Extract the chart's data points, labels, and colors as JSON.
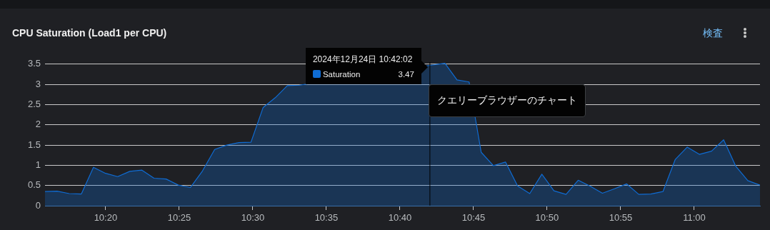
{
  "chart_data": {
    "type": "area",
    "title": "CPU Saturation (Load1 per CPU)",
    "x": [
      10.2646,
      10.2783,
      10.292,
      10.3058,
      10.3195,
      10.3332,
      10.3469,
      10.3607,
      10.3744,
      10.3881,
      10.4018,
      10.4156,
      10.4293,
      10.443,
      10.4568,
      10.4705,
      10.4842,
      10.4979,
      10.5117,
      10.5254,
      10.5391,
      10.5528,
      10.5666,
      10.5803,
      10.594,
      10.6077,
      10.6215,
      10.6352,
      10.6489,
      10.6627,
      10.6764,
      10.6901,
      10.7006,
      10.7176,
      10.7313,
      10.745,
      10.7587,
      10.7725,
      10.7862,
      10.7999,
      10.8137,
      10.8274,
      10.8411,
      10.8548,
      10.8686,
      10.8823,
      10.896,
      10.9097,
      10.9235,
      10.9372,
      10.9509,
      10.9646,
      10.9784,
      10.9921,
      11.0058,
      11.0196,
      11.0333,
      11.047,
      11.0607,
      11.0745
    ],
    "series": [
      {
        "name": "Saturation",
        "color": "#0f6cd4",
        "values": [
          0.35,
          0.36,
          0.3,
          0.29,
          0.95,
          0.8,
          0.72,
          0.85,
          0.88,
          0.68,
          0.66,
          0.51,
          0.45,
          0.86,
          1.39,
          1.5,
          1.56,
          1.57,
          2.43,
          2.67,
          2.97,
          2.98,
          null,
          null,
          null,
          null,
          null,
          null,
          null,
          null,
          null,
          null,
          3.47,
          3.52,
          3.11,
          3.06,
          1.32,
          0.99,
          1.08,
          0.49,
          0.3,
          0.78,
          0.37,
          0.28,
          0.63,
          0.48,
          0.31,
          0.42,
          0.54,
          0.28,
          0.29,
          0.35,
          1.14,
          1.45,
          1.27,
          1.35,
          1.63,
          0.98,
          0.62,
          0.51
        ],
        "value_labels": [
          null,
          null,
          null,
          null,
          null,
          null,
          null,
          null,
          null,
          null,
          null,
          null,
          null,
          null,
          null,
          null,
          null,
          null,
          null,
          null,
          null,
          null,
          null,
          null,
          null,
          null,
          null,
          null,
          null,
          null,
          null,
          null,
          "3.47",
          null,
          null,
          null,
          null,
          null,
          null,
          null,
          null,
          null,
          null,
          null,
          null,
          null,
          null,
          null,
          null,
          null,
          null,
          null,
          null,
          null,
          null,
          null,
          null,
          null,
          null,
          null
        ]
      }
    ],
    "xlim": [
      10.2646,
      11.0745
    ],
    "xticks": [
      {
        "value": 10.3333,
        "label": "10:20"
      },
      {
        "value": 10.4167,
        "label": "10:25"
      },
      {
        "value": 10.5,
        "label": "10:30"
      },
      {
        "value": 10.5833,
        "label": "10:35"
      },
      {
        "value": 10.6667,
        "label": "10:40"
      },
      {
        "value": 10.75,
        "label": "10:45"
      },
      {
        "value": 10.8333,
        "label": "10:50"
      },
      {
        "value": 10.9167,
        "label": "10:55"
      },
      {
        "value": 11,
        "label": "11:00"
      }
    ],
    "ylim": [
      0,
      3.55
    ],
    "yticks": [
      0,
      0.5,
      1,
      1.5,
      2,
      2.5,
      3,
      3.5
    ],
    "grid": "y",
    "ref_lines": [
      {
        "axis": "x",
        "value": 10.7006,
        "color": "#000000"
      }
    ],
    "annotations": [
      "検査",
      "クエリーブラウザーのチャート",
      {
        "text": "2024年12月24日 10:42:02",
        "x": 10.7006,
        "y": 3.47
      }
    ]
  }
}
